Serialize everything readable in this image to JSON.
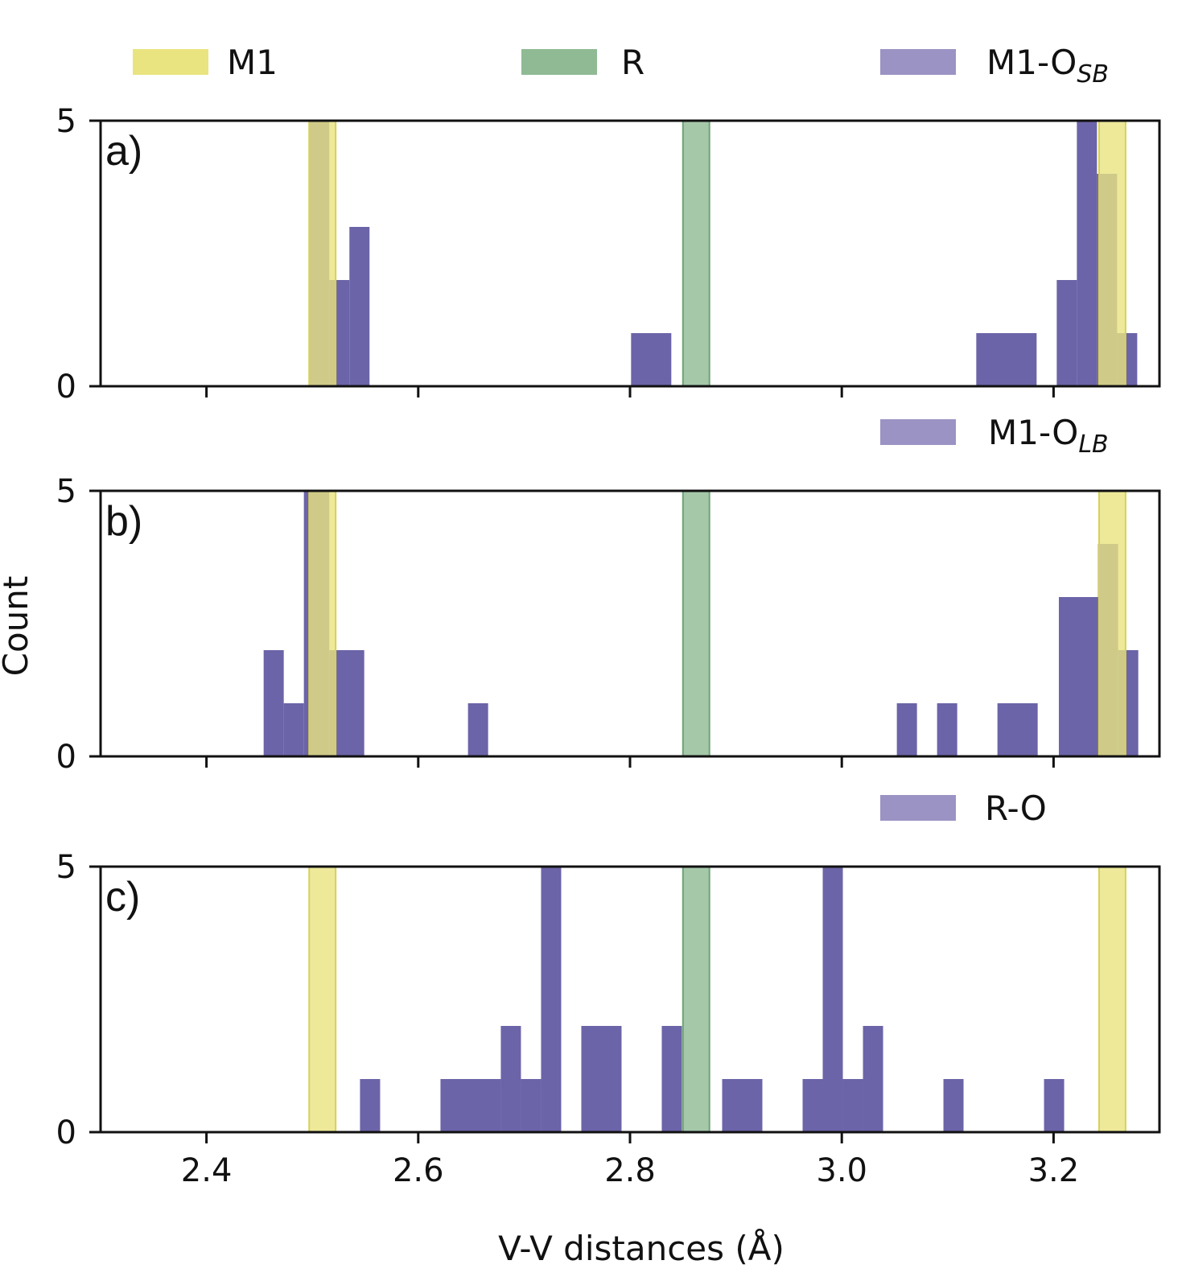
{
  "chart_data": {
    "type": "bar",
    "xlabel": "V-V distances (Å)",
    "ylabel": "Count",
    "xlim": [
      2.3,
      3.3
    ],
    "ylim": [
      0,
      5
    ],
    "x_ticks": [
      "2.4",
      "2.6",
      "2.8",
      "3.0",
      "3.2"
    ],
    "x_tick_values": [
      2.4,
      2.6,
      2.8,
      3.0,
      3.2
    ],
    "y_ticks": [
      "0",
      "5"
    ],
    "y_tick_values": [
      0,
      5
    ],
    "colors": {
      "M1": "#e9e47f",
      "R": "#8fba94",
      "hist": "#6b64a8",
      "overlap": "#9c8e5c",
      "legend_hist": "#9b93c4"
    },
    "reference_bands": [
      {
        "name": "M1",
        "x0": 2.497,
        "x1": 2.522
      },
      {
        "name": "M1",
        "x0": 3.243,
        "x1": 3.268
      },
      {
        "name": "R",
        "x0": 2.85,
        "x1": 2.875
      }
    ],
    "panels": [
      {
        "label": "a)",
        "legend": [
          {
            "key": "M1",
            "text": "M1",
            "sub": ""
          },
          {
            "key": "R",
            "text": "R",
            "sub": ""
          },
          {
            "key": "hist",
            "text": "M1-O",
            "sub": "SB"
          }
        ],
        "bins": [
          {
            "x0": 2.497,
            "x1": 2.516,
            "count": 5
          },
          {
            "x0": 2.516,
            "x1": 2.535,
            "count": 2
          },
          {
            "x0": 2.535,
            "x1": 2.554,
            "count": 3
          },
          {
            "x0": 2.801,
            "x1": 2.839,
            "count": 1
          },
          {
            "x0": 3.127,
            "x1": 3.184,
            "count": 1
          },
          {
            "x0": 3.203,
            "x1": 3.222,
            "count": 2
          },
          {
            "x0": 3.222,
            "x1": 3.241,
            "count": 5
          },
          {
            "x0": 3.241,
            "x1": 3.26,
            "count": 4
          },
          {
            "x0": 3.26,
            "x1": 3.279,
            "count": 1
          }
        ]
      },
      {
        "label": "b)",
        "legend": [
          {
            "key": "hist",
            "text": "M1-O",
            "sub": "LB"
          }
        ],
        "bins": [
          {
            "x0": 2.454,
            "x1": 2.473,
            "count": 2
          },
          {
            "x0": 2.473,
            "x1": 2.492,
            "count": 1
          },
          {
            "x0": 2.492,
            "x1": 2.497,
            "count": 5
          },
          {
            "x0": 2.497,
            "x1": 2.516,
            "count": 5
          },
          {
            "x0": 2.516,
            "x1": 2.549,
            "count": 2
          },
          {
            "x0": 2.647,
            "x1": 2.666,
            "count": 1
          },
          {
            "x0": 3.052,
            "x1": 3.071,
            "count": 1
          },
          {
            "x0": 3.09,
            "x1": 3.109,
            "count": 1
          },
          {
            "x0": 3.147,
            "x1": 3.185,
            "count": 1
          },
          {
            "x0": 3.205,
            "x1": 3.242,
            "count": 3
          },
          {
            "x0": 3.242,
            "x1": 3.261,
            "count": 4
          },
          {
            "x0": 3.261,
            "x1": 3.28,
            "count": 2
          }
        ]
      },
      {
        "label": "c)",
        "legend": [
          {
            "key": "hist",
            "text": "R-O",
            "sub": ""
          }
        ],
        "bins": [
          {
            "x0": 2.545,
            "x1": 2.564,
            "count": 1
          },
          {
            "x0": 2.621,
            "x1": 2.678,
            "count": 1
          },
          {
            "x0": 2.678,
            "x1": 2.697,
            "count": 2
          },
          {
            "x0": 2.697,
            "x1": 2.716,
            "count": 1
          },
          {
            "x0": 2.716,
            "x1": 2.735,
            "count": 5
          },
          {
            "x0": 2.754,
            "x1": 2.792,
            "count": 2
          },
          {
            "x0": 2.83,
            "x1": 2.849,
            "count": 2
          },
          {
            "x0": 2.887,
            "x1": 2.925,
            "count": 1
          },
          {
            "x0": 2.963,
            "x1": 2.982,
            "count": 1
          },
          {
            "x0": 2.982,
            "x1": 3.001,
            "count": 5
          },
          {
            "x0": 3.001,
            "x1": 3.02,
            "count": 1
          },
          {
            "x0": 3.02,
            "x1": 3.039,
            "count": 2
          },
          {
            "x0": 3.096,
            "x1": 3.115,
            "count": 1
          },
          {
            "x0": 3.191,
            "x1": 3.21,
            "count": 1
          }
        ]
      }
    ]
  }
}
